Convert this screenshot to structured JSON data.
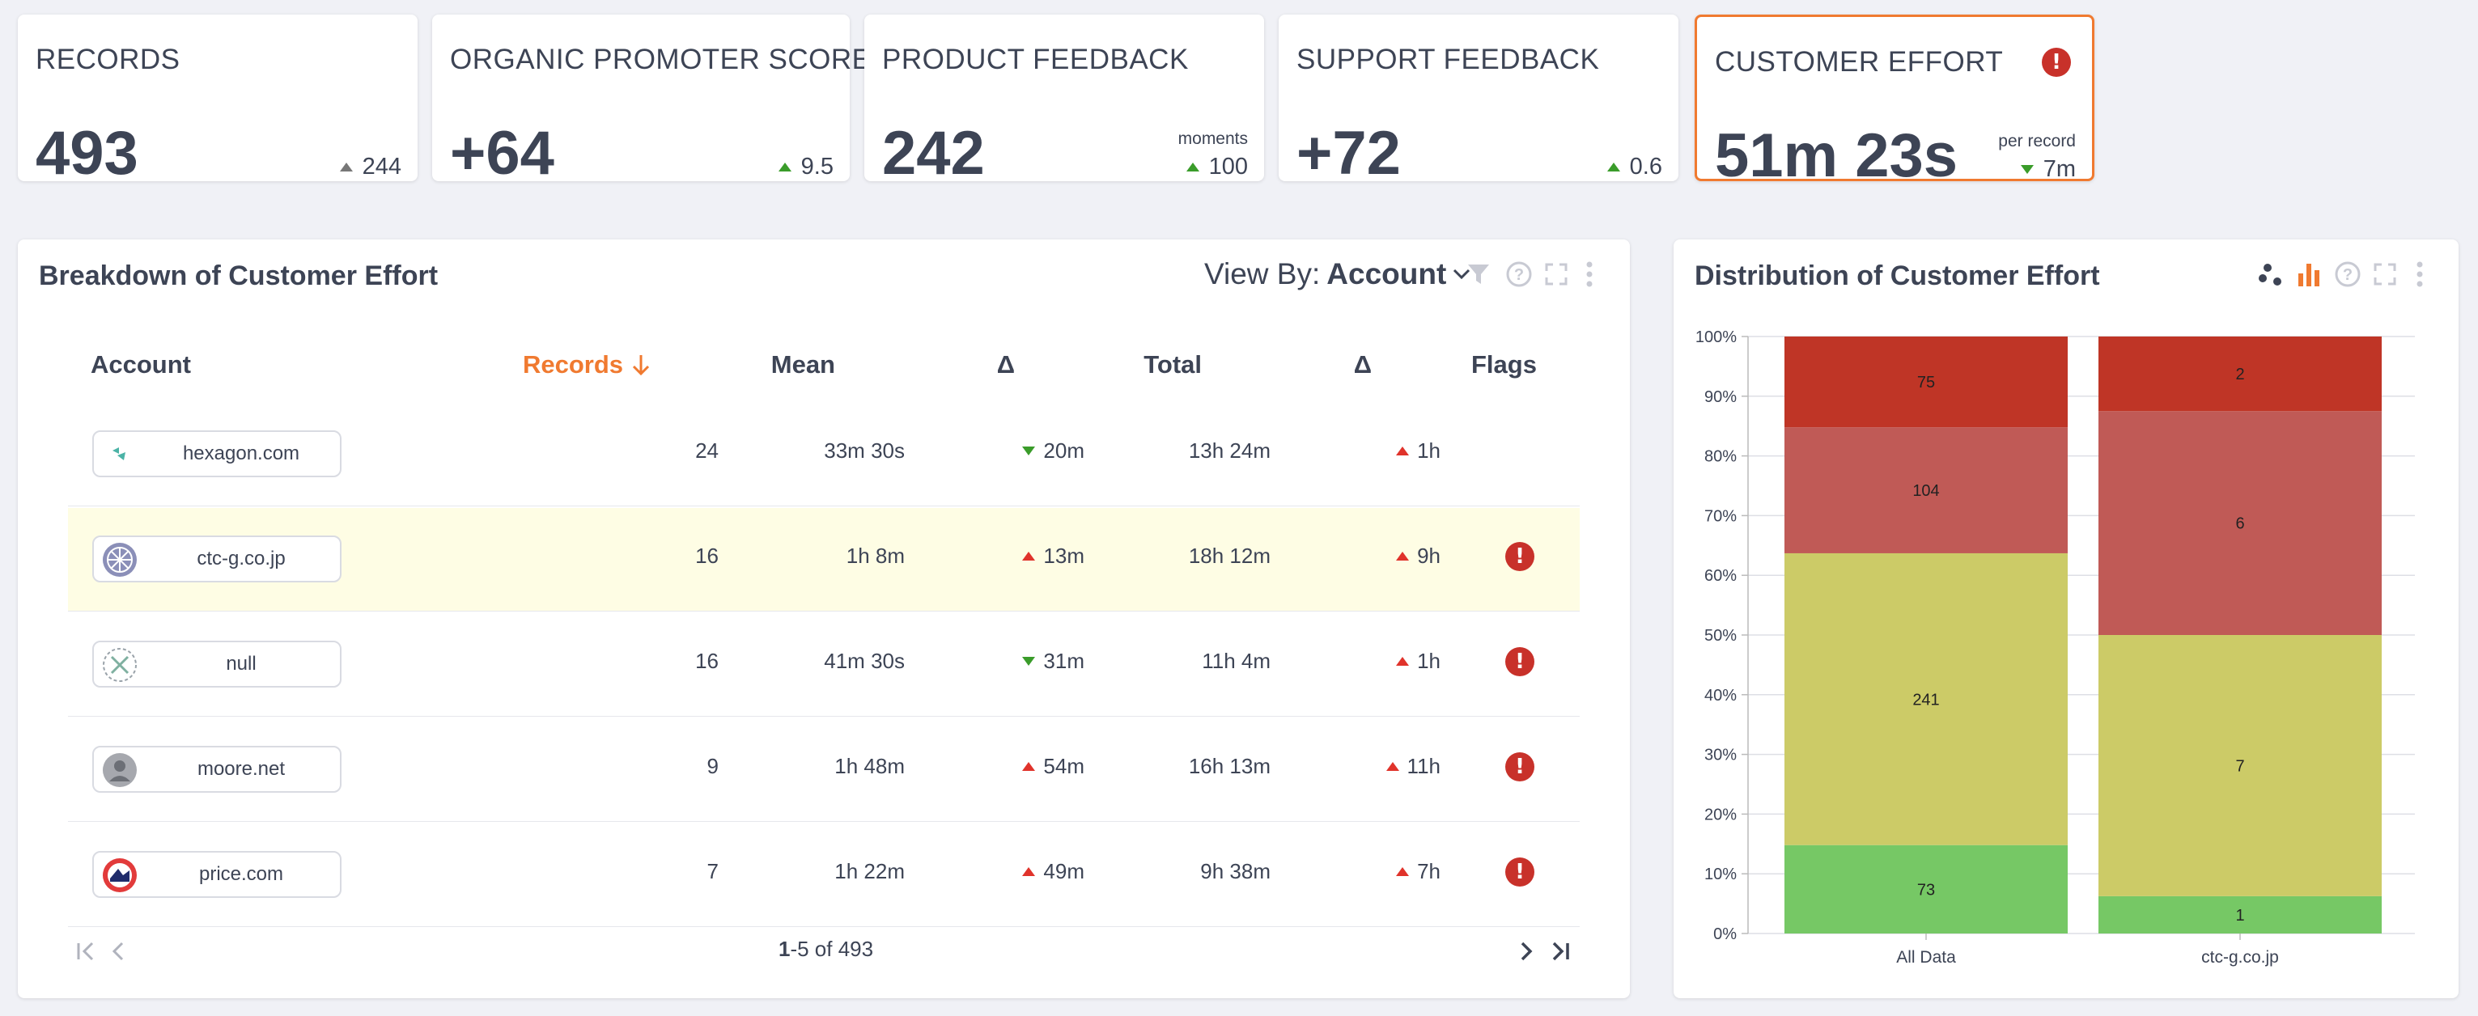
{
  "kpis": [
    {
      "title": "RECORDS",
      "value": "493",
      "sub": "",
      "delta": "244",
      "dir": "up-grey"
    },
    {
      "title": "ORGANIC PROMOTER SCORE",
      "value": "+64",
      "sub": "",
      "delta": "9.5",
      "dir": "up"
    },
    {
      "title": "PRODUCT FEEDBACK",
      "value": "242",
      "sub": "moments",
      "delta": "100",
      "dir": "up"
    },
    {
      "title": "SUPPORT FEEDBACK",
      "value": "+72",
      "sub": "",
      "delta": "0.6",
      "dir": "up"
    },
    {
      "title": "CUSTOMER EFFORT",
      "value": "51m 23s",
      "sub": "per record",
      "delta": "7m",
      "dir": "down"
    }
  ],
  "kpi_alert_icon": "exclamation-circle-icon",
  "breakdown": {
    "title": "Breakdown of Customer Effort",
    "view_by_label": "View By:",
    "view_by_value": "Account",
    "headers": {
      "account": "Account",
      "records": "Records",
      "mean": "Mean",
      "mean_delta": "Δ",
      "total": "Total",
      "total_delta": "Δ",
      "flags": "Flags"
    },
    "rows": [
      {
        "account": "hexagon.com",
        "records": "24",
        "mean": "33m 30s",
        "mean_delta": "20m",
        "mean_dir": "down",
        "total": "13h 24m",
        "total_delta": "1h",
        "total_dir": "up",
        "flag": false
      },
      {
        "account": "ctc-g.co.jp",
        "records": "16",
        "mean": "1h 8m",
        "mean_delta": "13m",
        "mean_dir": "up",
        "total": "18h 12m",
        "total_delta": "9h",
        "total_dir": "up",
        "flag": true
      },
      {
        "account": "null",
        "records": "16",
        "mean": "41m 30s",
        "mean_delta": "31m",
        "mean_dir": "down",
        "total": "11h 4m",
        "total_delta": "1h",
        "total_dir": "up",
        "flag": true
      },
      {
        "account": "moore.net",
        "records": "9",
        "mean": "1h 48m",
        "mean_delta": "54m",
        "mean_dir": "up",
        "total": "16h 13m",
        "total_delta": "11h",
        "total_dir": "up",
        "flag": true
      },
      {
        "account": "price.com",
        "records": "7",
        "mean": "1h 22m",
        "mean_delta": "49m",
        "mean_dir": "up",
        "total": "9h 38m",
        "total_delta": "7h",
        "total_dir": "up",
        "flag": true
      }
    ],
    "pager": {
      "range": "1",
      "rest": "-5 of 493"
    }
  },
  "distribution": {
    "title": "Distribution of Customer Effort"
  },
  "chart_data": {
    "type": "bar",
    "stacked": true,
    "normalized": true,
    "title": "Distribution of Customer Effort",
    "categories": [
      "All Data",
      "ctc-g.co.jp"
    ],
    "series": [
      {
        "values": [
          73,
          1
        ],
        "color": "#76c865"
      },
      {
        "values": [
          241,
          7
        ],
        "color": "#cccb67"
      },
      {
        "values": [
          104,
          6
        ],
        "color": "#c05a56"
      },
      {
        "values": [
          75,
          2
        ],
        "color": "#bf3526"
      }
    ],
    "ylim": [
      0,
      100
    ],
    "yticks": [
      "0%",
      "10%",
      "20%",
      "30%",
      "40%",
      "50%",
      "60%",
      "70%",
      "80%",
      "90%",
      "100%"
    ],
    "grid": true
  }
}
